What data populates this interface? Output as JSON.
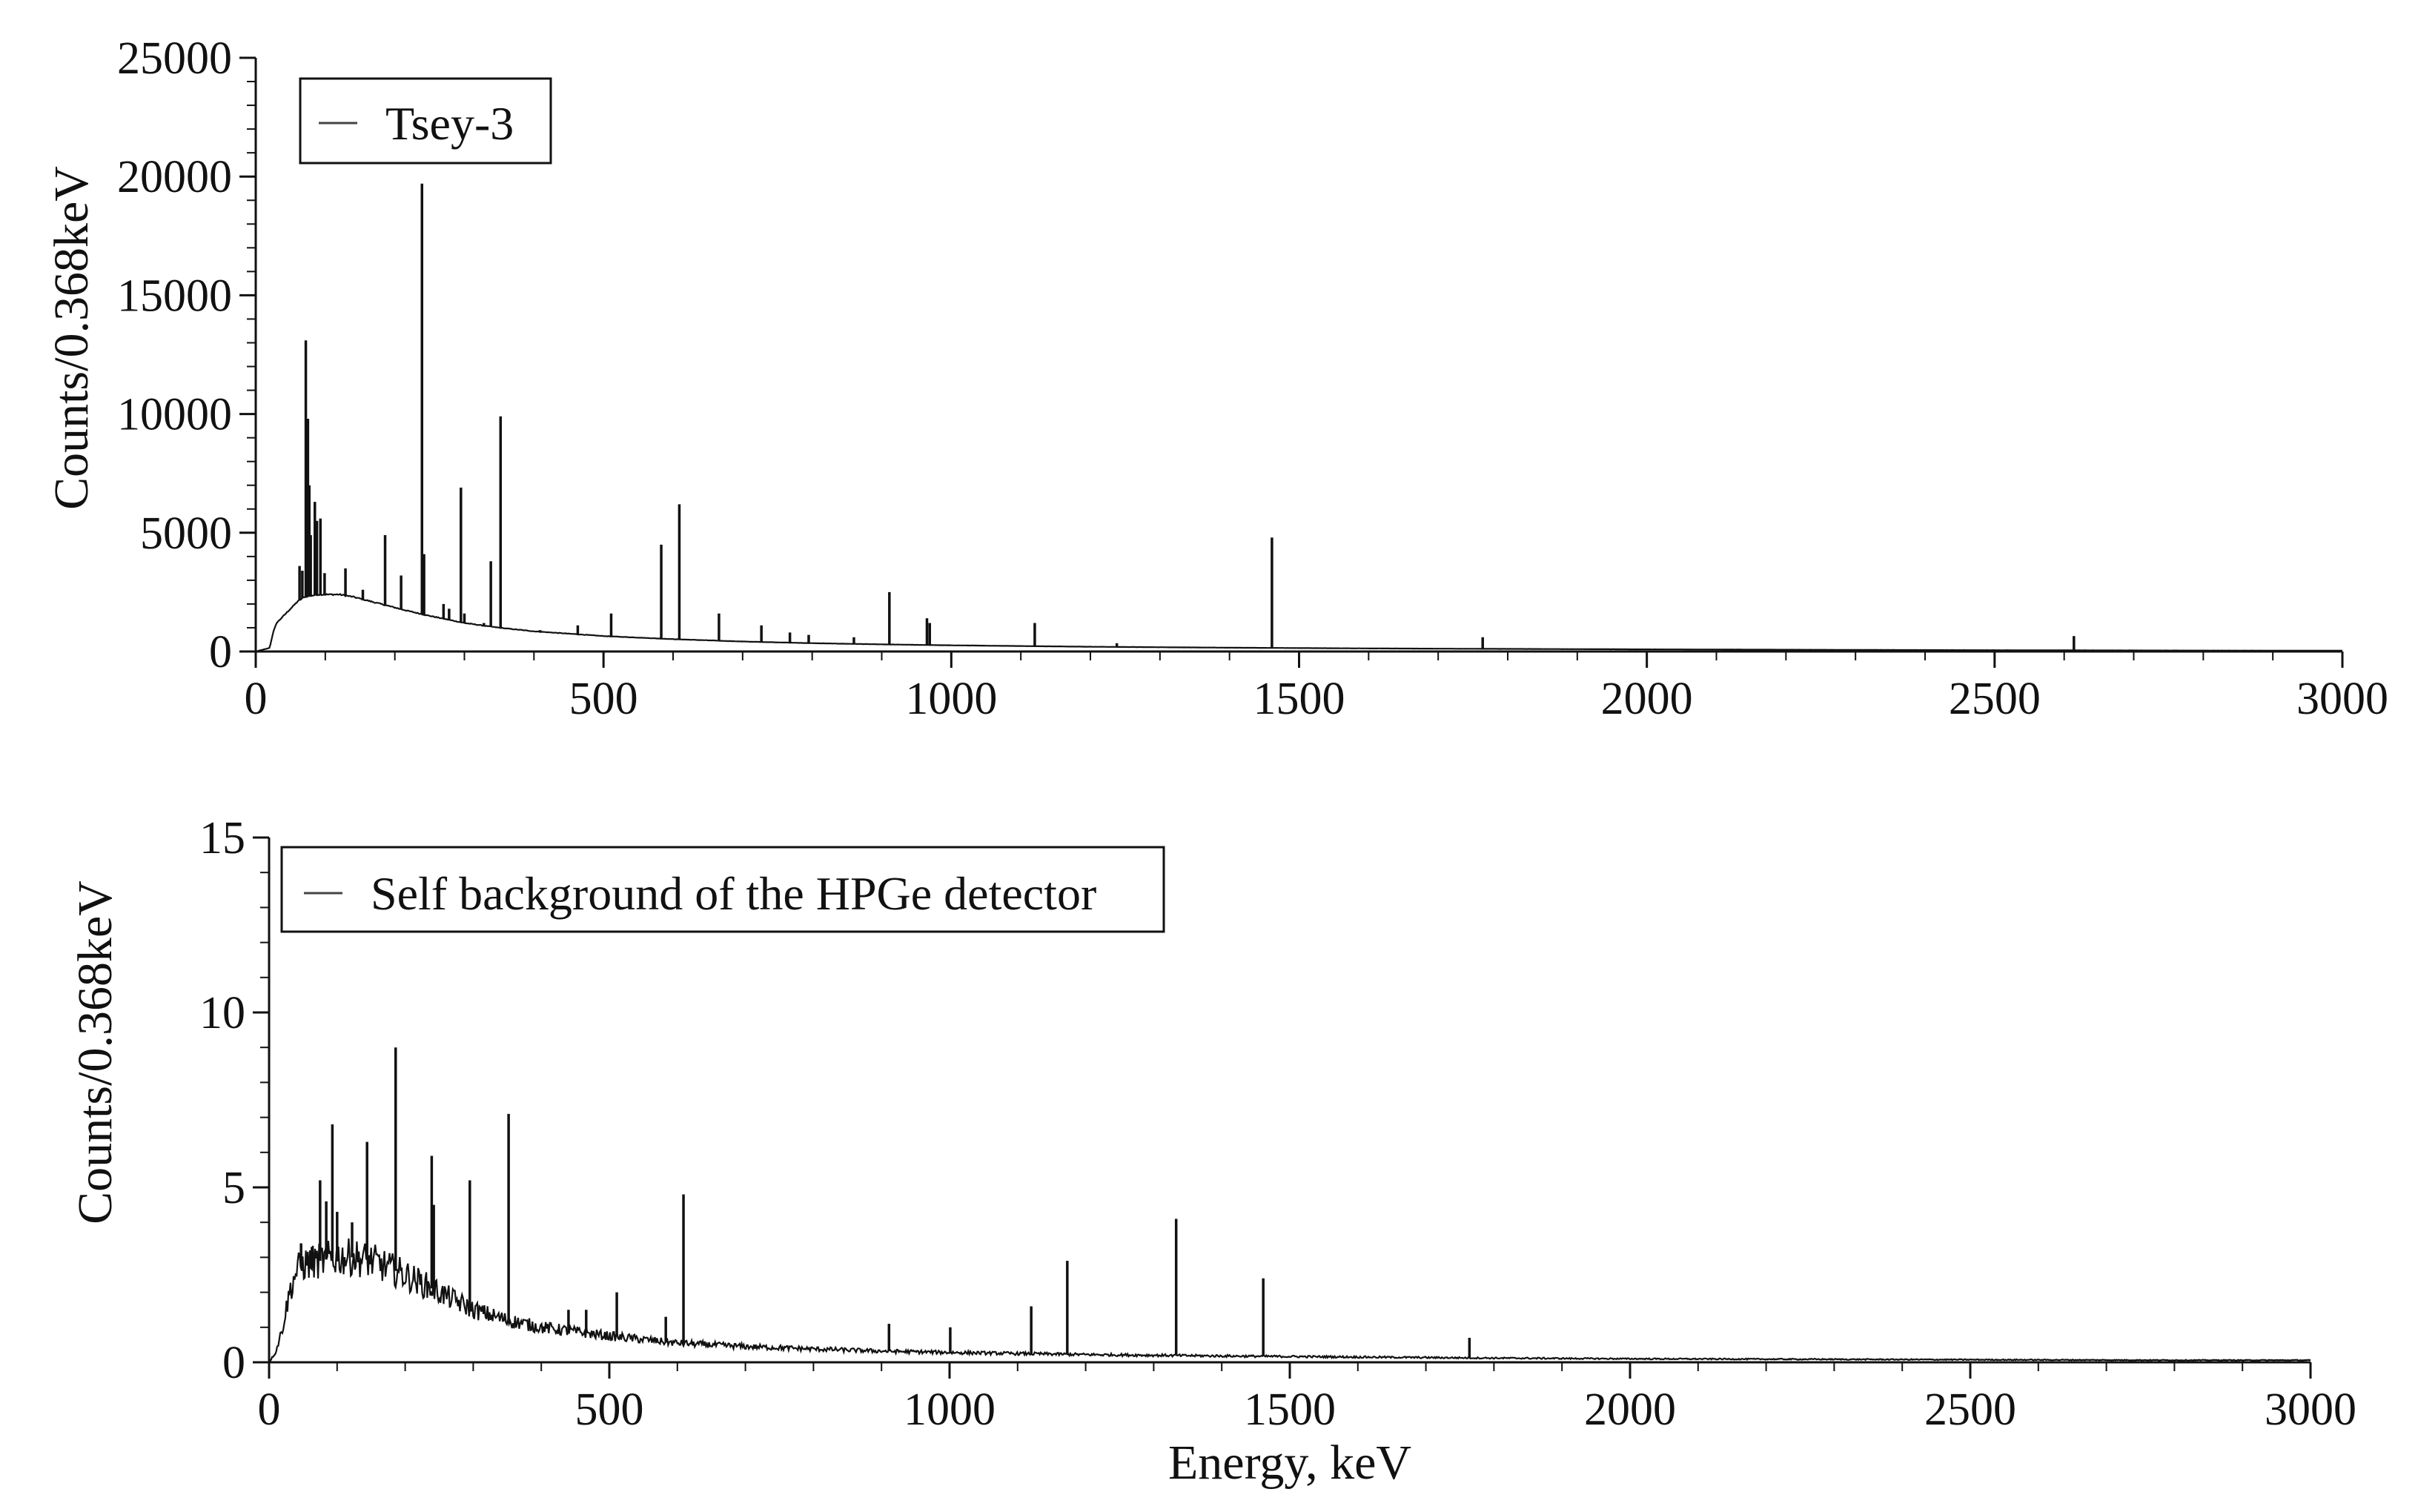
{
  "chart_data": [
    {
      "type": "line",
      "xlabel": "",
      "ylabel": "Counts/0.368keV",
      "xlim": [
        0,
        3000
      ],
      "ylim": [
        0,
        25000
      ],
      "xticks": [
        "0",
        "500",
        "1000",
        "1500",
        "2000",
        "2500",
        "3000"
      ],
      "yticks": [
        "0",
        "5000",
        "10000",
        "15000",
        "20000",
        "25000"
      ],
      "legend": {
        "placement": "top-left",
        "entries": [
          "Tsey-3"
        ]
      },
      "grid": false,
      "series": [
        {
          "name": "Tsey-3",
          "continuum": [
            [
              0,
              0
            ],
            [
              20,
              150
            ],
            [
              25,
              800
            ],
            [
              30,
              1200
            ],
            [
              40,
              1500
            ],
            [
              50,
              1800
            ],
            [
              60,
              2100
            ],
            [
              70,
              2300
            ],
            [
              80,
              2350
            ],
            [
              90,
              2400
            ],
            [
              100,
              2400
            ],
            [
              120,
              2400
            ],
            [
              140,
              2300
            ],
            [
              160,
              2150
            ],
            [
              180,
              2000
            ],
            [
              200,
              1850
            ],
            [
              220,
              1700
            ],
            [
              250,
              1500
            ],
            [
              300,
              1200
            ],
            [
              350,
              1000
            ],
            [
              400,
              850
            ],
            [
              500,
              650
            ],
            [
              600,
              520
            ],
            [
              700,
              420
            ],
            [
              800,
              350
            ],
            [
              900,
              300
            ],
            [
              1000,
              260
            ],
            [
              1200,
              200
            ],
            [
              1400,
              160
            ],
            [
              1600,
              130
            ],
            [
              1800,
              110
            ],
            [
              2000,
              90
            ],
            [
              2200,
              75
            ],
            [
              2400,
              60
            ],
            [
              2600,
              50
            ],
            [
              2800,
              40
            ],
            [
              3000,
              35
            ]
          ],
          "peaks": [
            [
              63,
              3600
            ],
            [
              67,
              3400
            ],
            [
              72,
              13100
            ],
            [
              75,
              9800
            ],
            [
              77,
              7000
            ],
            [
              79,
              4900
            ],
            [
              85,
              6300
            ],
            [
              88,
              5500
            ],
            [
              93,
              5600
            ],
            [
              99,
              3300
            ],
            [
              129,
              3500
            ],
            [
              154,
              2600
            ],
            [
              186,
              4900
            ],
            [
              209,
              3200
            ],
            [
              239,
              19700
            ],
            [
              242,
              4100
            ],
            [
              270,
              2000
            ],
            [
              278,
              1800
            ],
            [
              295,
              6900
            ],
            [
              300,
              1600
            ],
            [
              328,
              1200
            ],
            [
              338,
              3800
            ],
            [
              352,
              9900
            ],
            [
              409,
              900
            ],
            [
              463,
              1100
            ],
            [
              511,
              1600
            ],
            [
              583,
              4500
            ],
            [
              609,
              6200
            ],
            [
              666,
              1600
            ],
            [
              727,
              1100
            ],
            [
              768,
              800
            ],
            [
              795,
              700
            ],
            [
              860,
              600
            ],
            [
              911,
              2500
            ],
            [
              965,
              1400
            ],
            [
              969,
              1200
            ],
            [
              1120,
              1200
            ],
            [
              1238,
              350
            ],
            [
              1377,
              200
            ],
            [
              1461,
              4800
            ],
            [
              1592,
              120
            ],
            [
              1729,
              120
            ],
            [
              1764,
              600
            ],
            [
              1847,
              100
            ],
            [
              2204,
              100
            ],
            [
              2447,
              60
            ],
            [
              2614,
              650
            ]
          ]
        }
      ]
    },
    {
      "type": "line",
      "xlabel": "Energy, keV",
      "ylabel": "Counts/0.368keV",
      "xlim": [
        0,
        3000
      ],
      "ylim": [
        0,
        15
      ],
      "xticks": [
        "0",
        "500",
        "1000",
        "1500",
        "2000",
        "2500",
        "3000"
      ],
      "yticks": [
        "0",
        "5",
        "10",
        "15"
      ],
      "legend": {
        "placement": "top-left",
        "entries": [
          "Self background of the HPGe detector"
        ]
      },
      "grid": false,
      "series": [
        {
          "name": "Self background of the HPGe detector",
          "continuum": [
            [
              0,
              0
            ],
            [
              10,
              0.3
            ],
            [
              20,
              1.0
            ],
            [
              30,
              2.0
            ],
            [
              40,
              2.6
            ],
            [
              50,
              2.8
            ],
            [
              75,
              2.9
            ],
            [
              100,
              3.0
            ],
            [
              125,
              3.0
            ],
            [
              150,
              2.9
            ],
            [
              175,
              2.7
            ],
            [
              200,
              2.5
            ],
            [
              250,
              2.0
            ],
            [
              300,
              1.5
            ],
            [
              350,
              1.2
            ],
            [
              400,
              1.0
            ],
            [
              500,
              0.75
            ],
            [
              600,
              0.55
            ],
            [
              700,
              0.45
            ],
            [
              800,
              0.38
            ],
            [
              900,
              0.32
            ],
            [
              1000,
              0.28
            ],
            [
              1200,
              0.22
            ],
            [
              1400,
              0.18
            ],
            [
              1600,
              0.15
            ],
            [
              1800,
              0.12
            ],
            [
              2000,
              0.1
            ],
            [
              2200,
              0.09
            ],
            [
              2400,
              0.08
            ],
            [
              2600,
              0.07
            ],
            [
              2800,
              0.06
            ],
            [
              3000,
              0.06
            ]
          ],
          "peaks": [
            [
              47,
              3.4
            ],
            [
              63,
              3.3
            ],
            [
              75,
              5.2
            ],
            [
              84,
              4.6
            ],
            [
              93,
              6.8
            ],
            [
              100,
              4.3
            ],
            [
              122,
              4.0
            ],
            [
              144,
              6.3
            ],
            [
              186,
              9.0
            ],
            [
              239,
              5.9
            ],
            [
              242,
              4.5
            ],
            [
              295,
              5.2
            ],
            [
              352,
              7.1
            ],
            [
              440,
              1.5
            ],
            [
              466,
              1.5
            ],
            [
              511,
              2.0
            ],
            [
              583,
              1.3
            ],
            [
              609,
              4.8
            ],
            [
              911,
              1.1
            ],
            [
              1001,
              1.0
            ],
            [
              1120,
              1.6
            ],
            [
              1173,
              2.9
            ],
            [
              1333,
              4.1
            ],
            [
              1461,
              2.4
            ],
            [
              1764,
              0.7
            ]
          ]
        }
      ]
    }
  ]
}
